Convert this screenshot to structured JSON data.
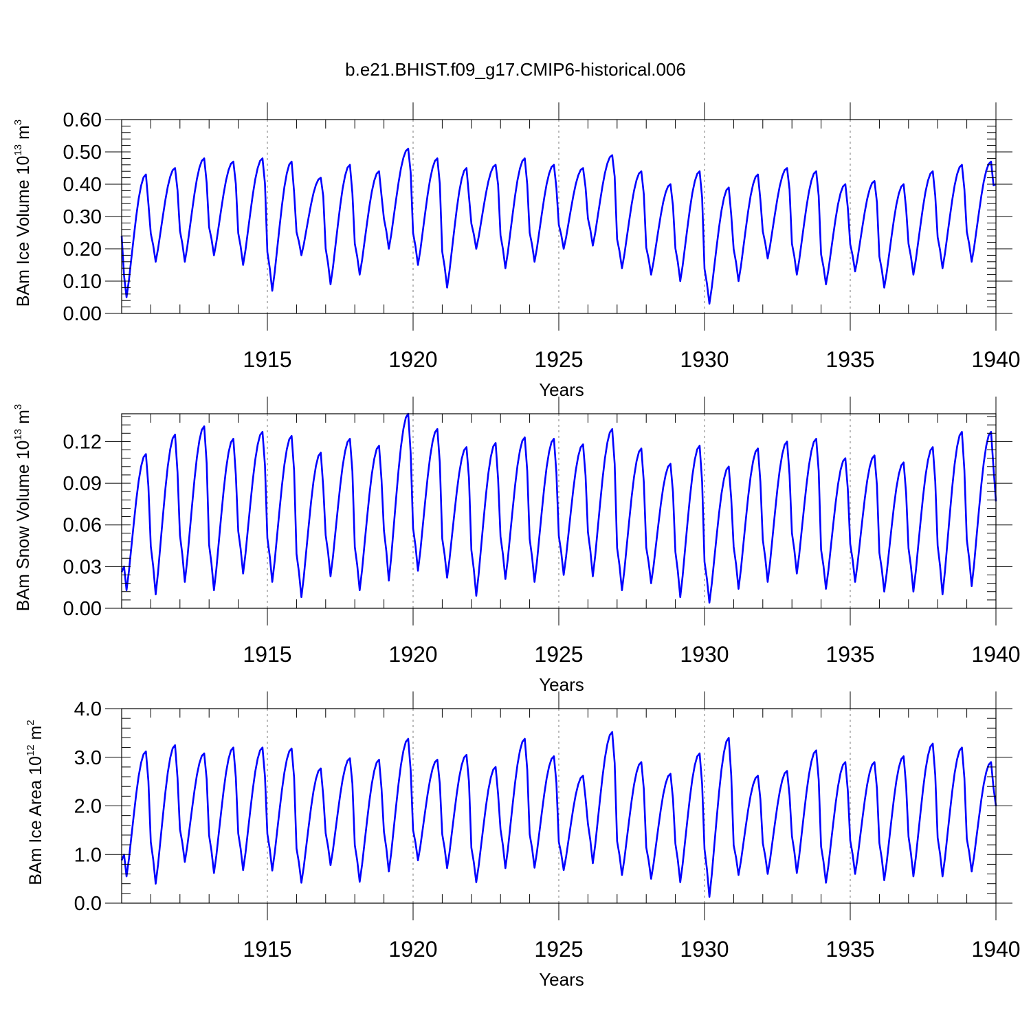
{
  "title": "b.e21.BHIST.f09_g17.CMIP6-historical.006",
  "x_tick_labels": [
    "1915",
    "1920",
    "1925",
    "1930",
    "1935",
    "1940"
  ],
  "colors": {
    "line": "#0000ff",
    "axes": "#000000",
    "grid": "#777777"
  },
  "chart_data": [
    {
      "type": "line",
      "ylabel_text": "BAm Ice Volume 10",
      "ylabel_exp": "13",
      "ylabel_unit": " m",
      "ylabel_unit_exp": "3",
      "xlabel": "Years",
      "xlim": [
        1910,
        1940
      ],
      "ylim": [
        0,
        0.6
      ],
      "x_ticks": [
        1915,
        1920,
        1925,
        1930,
        1935,
        1940
      ],
      "y_ticks": [
        0,
        0.1,
        0.2,
        0.3,
        0.4,
        0.5,
        0.6
      ],
      "y_tick_labels": [
        "0.00",
        "0.10",
        "0.20",
        "0.30",
        "0.40",
        "0.50",
        "0.60"
      ],
      "grid": "vertical dashed at 5-year ticks",
      "series_min": [
        0.05,
        0.16,
        0.16,
        0.18,
        0.15,
        0.07,
        0.18,
        0.09,
        0.12,
        0.2,
        0.15,
        0.08,
        0.2,
        0.14,
        0.16,
        0.2,
        0.21,
        0.14,
        0.12,
        0.1,
        0.03,
        0.1,
        0.17,
        0.12,
        0.09,
        0.13,
        0.08,
        0.12,
        0.14,
        0.16
      ],
      "series_max": [
        0.43,
        0.45,
        0.48,
        0.47,
        0.48,
        0.47,
        0.42,
        0.46,
        0.44,
        0.51,
        0.48,
        0.45,
        0.46,
        0.48,
        0.46,
        0.45,
        0.49,
        0.44,
        0.4,
        0.44,
        0.39,
        0.43,
        0.45,
        0.44,
        0.4,
        0.41,
        0.4,
        0.44,
        0.46,
        0.47
      ],
      "start_value": 0.24,
      "end_value": 0.4
    },
    {
      "type": "line",
      "ylabel_text": "BAm Snow Volume 10",
      "ylabel_exp": "13",
      "ylabel_unit": " m",
      "ylabel_unit_exp": "3",
      "xlabel": "Years",
      "xlim": [
        1910,
        1940
      ],
      "ylim": [
        0,
        0.14
      ],
      "x_ticks": [
        1915,
        1920,
        1925,
        1930,
        1935,
        1940
      ],
      "y_ticks": [
        0,
        0.03,
        0.06,
        0.09,
        0.12
      ],
      "y_tick_labels": [
        "0.00",
        "0.03",
        "0.06",
        "0.09",
        "0.12"
      ],
      "grid": "vertical dashed at 5-year ticks",
      "series_min": [
        0.013,
        0.01,
        0.019,
        0.013,
        0.025,
        0.019,
        0.008,
        0.023,
        0.013,
        0.02,
        0.027,
        0.022,
        0.009,
        0.021,
        0.019,
        0.024,
        0.023,
        0.013,
        0.018,
        0.008,
        0.004,
        0.014,
        0.019,
        0.025,
        0.014,
        0.019,
        0.012,
        0.012,
        0.01,
        0.016
      ],
      "series_max": [
        0.111,
        0.125,
        0.131,
        0.122,
        0.127,
        0.124,
        0.112,
        0.122,
        0.117,
        0.14,
        0.129,
        0.116,
        0.119,
        0.123,
        0.122,
        0.118,
        0.129,
        0.115,
        0.104,
        0.117,
        0.102,
        0.115,
        0.12,
        0.122,
        0.108,
        0.11,
        0.105,
        0.116,
        0.127,
        0.127
      ],
      "start_value": 0.026,
      "end_value": 0.077
    },
    {
      "type": "line",
      "ylabel_text": "BAm Ice Area 10",
      "ylabel_exp": "12",
      "ylabel_unit": " m",
      "ylabel_unit_exp": "2",
      "xlabel": "Years",
      "xlim": [
        1910,
        1940
      ],
      "ylim": [
        0,
        4
      ],
      "x_ticks": [
        1915,
        1920,
        1925,
        1930,
        1935,
        1940
      ],
      "y_ticks": [
        0,
        1,
        2,
        3,
        4
      ],
      "y_tick_labels": [
        "0.0",
        "1.0",
        "2.0",
        "3.0",
        "4.0"
      ],
      "grid": "vertical dashed at 5-year ticks",
      "series_min": [
        0.55,
        0.4,
        0.85,
        0.62,
        0.68,
        0.67,
        0.42,
        0.78,
        0.44,
        0.65,
        0.88,
        0.72,
        0.43,
        0.72,
        0.73,
        0.68,
        0.82,
        0.58,
        0.5,
        0.43,
        0.13,
        0.58,
        0.6,
        0.62,
        0.42,
        0.6,
        0.47,
        0.55,
        0.55,
        0.65
      ],
      "series_max": [
        3.12,
        3.25,
        3.08,
        3.2,
        3.2,
        3.18,
        2.77,
        2.98,
        2.95,
        3.38,
        2.95,
        3.05,
        2.8,
        3.38,
        3.02,
        2.62,
        3.52,
        2.9,
        2.66,
        3.08,
        3.4,
        2.62,
        2.72,
        3.14,
        2.9,
        2.9,
        3.02,
        3.28,
        3.2,
        2.9
      ],
      "start_value": 0.88,
      "end_value": 2.0
    }
  ]
}
